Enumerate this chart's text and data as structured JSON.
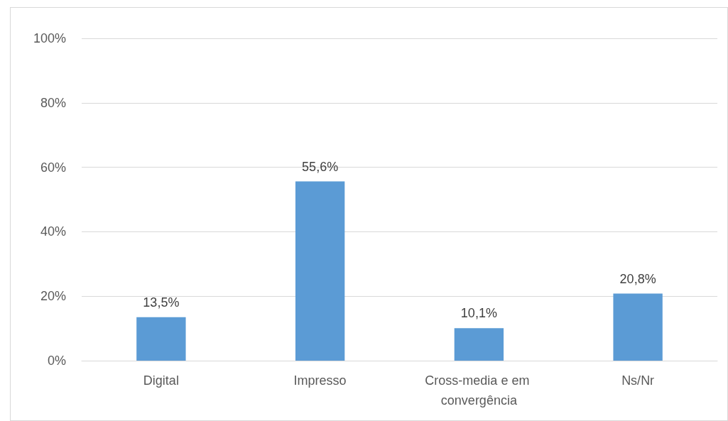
{
  "chart_data": {
    "type": "bar",
    "categories": [
      "Digital",
      "Impresso",
      "Cross-media e em convergência",
      "Ns/Nr"
    ],
    "values": [
      13.5,
      55.6,
      10.1,
      20.8
    ],
    "value_labels": [
      "13,5%",
      "55,6%",
      "10,1%",
      "20,8%"
    ],
    "color": "#5b9bd5",
    "ylim": [
      0,
      100
    ],
    "yticks": [
      {
        "value": 0,
        "label": "0%"
      },
      {
        "value": 20,
        "label": "20%"
      },
      {
        "value": 40,
        "label": "40%"
      },
      {
        "value": 60,
        "label": "60%"
      },
      {
        "value": 80,
        "label": "80%"
      },
      {
        "value": 100,
        "label": "100%"
      }
    ],
    "grid": "y"
  }
}
